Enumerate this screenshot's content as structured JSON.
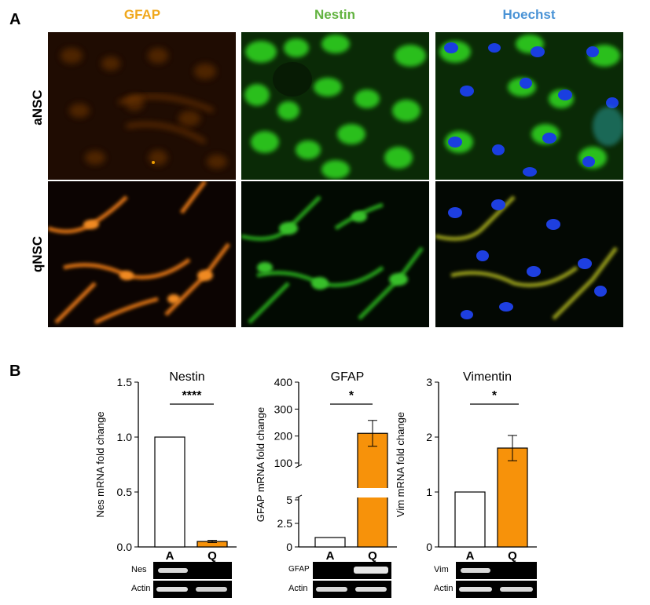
{
  "panel_a": {
    "letter": "A",
    "columns": [
      {
        "label": "GFAP",
        "color": "#f0a81c"
      },
      {
        "label": "Nestin",
        "color": "#62b340"
      },
      {
        "label": "Hoechst",
        "color": "#4a93d6"
      }
    ],
    "rows": [
      "aNSC",
      "qNSC"
    ]
  },
  "panel_b": {
    "letter": "B",
    "bar_colors": {
      "A": "#ffffff",
      "Q": "#f7920a"
    },
    "gels": [
      {
        "lanes": [
          "Nes",
          "Actin"
        ]
      },
      {
        "lanes": [
          "GFAP",
          "Actin"
        ]
      },
      {
        "lanes": [
          "Vim",
          "Actin"
        ]
      }
    ]
  },
  "chart_data": [
    {
      "type": "bar",
      "title": "Nestin",
      "ylabel": "Nes mRNA fold change",
      "categories": [
        "A",
        "Q"
      ],
      "values": [
        1.0,
        0.05
      ],
      "errors": [
        0,
        0.01
      ],
      "ylim": [
        0,
        1.5
      ],
      "yticks": [
        "0.0",
        "0.5",
        "1.0",
        "1.5"
      ],
      "significance": "****"
    },
    {
      "type": "bar",
      "title": "GFAP",
      "ylabel": "GFAP mRNA fold change",
      "categories": [
        "A",
        "Q"
      ],
      "values": [
        1.0,
        210
      ],
      "errors": [
        0,
        48
      ],
      "yaxis_break": true,
      "yticks": [
        "0",
        "2.5",
        "5",
        "100",
        "200",
        "300",
        "400"
      ],
      "significance": "*"
    },
    {
      "type": "bar",
      "title": "Vimentin",
      "ylabel": "Vim mRNA fold change",
      "categories": [
        "A",
        "Q"
      ],
      "values": [
        1.0,
        1.8
      ],
      "errors": [
        0,
        0.23
      ],
      "ylim": [
        0,
        3
      ],
      "yticks": [
        "0",
        "1",
        "2",
        "3"
      ],
      "significance": "*"
    }
  ]
}
